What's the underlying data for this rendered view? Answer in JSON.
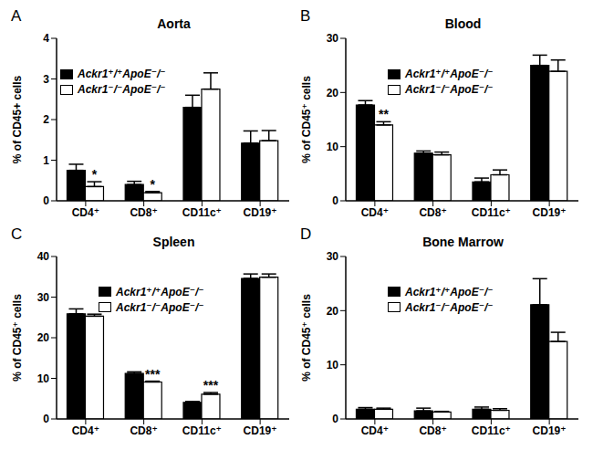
{
  "chart_data": [
    {
      "type": "bar",
      "panel": "A",
      "title": "Aorta",
      "y_label": "% of CD45+ cells",
      "categories": [
        "CD4⁺",
        "CD8⁺",
        "CD11c⁺",
        "CD19⁺"
      ],
      "series": [
        {
          "name": "Ackr1⁺/⁺ApoE⁻/⁻",
          "color": "#000000",
          "values": [
            0.75,
            0.4,
            2.3,
            1.42
          ],
          "errors": [
            0.15,
            0.08,
            0.3,
            0.3
          ]
        },
        {
          "name": "Ackr1⁻/⁻ApoE⁻/⁻",
          "color": "#ffffff",
          "values": [
            0.35,
            0.2,
            2.75,
            1.48
          ],
          "errors": [
            0.12,
            0.03,
            0.4,
            0.25
          ]
        }
      ],
      "ylim": [
        0,
        4
      ],
      "yticks": [
        0,
        1,
        2,
        3,
        4
      ],
      "legend": "upper left",
      "annotations": [
        {
          "category": "CD4⁺",
          "series": "Ackr1⁻/⁻ApoE⁻/⁻",
          "text": "*"
        },
        {
          "category": "CD8⁺",
          "series": "Ackr1⁻/⁻ApoE⁻/⁻",
          "text": "*"
        }
      ]
    },
    {
      "type": "bar",
      "panel": "B",
      "title": "Blood",
      "y_label": "% of CD45⁺ cells",
      "categories": [
        "CD4⁺",
        "CD8⁺",
        "CD11c⁺",
        "CD19⁺"
      ],
      "series": [
        {
          "name": "Ackr1⁺/⁺ApoE⁻/⁻",
          "color": "#000000",
          "values": [
            17.7,
            8.8,
            3.5,
            25.0
          ],
          "errors": [
            0.8,
            0.4,
            0.7,
            1.9
          ]
        },
        {
          "name": "Ackr1⁻/⁻ApoE⁻/⁻",
          "color": "#ffffff",
          "values": [
            14.0,
            8.5,
            4.8,
            23.9
          ],
          "errors": [
            0.6,
            0.5,
            0.9,
            2.1
          ]
        }
      ],
      "ylim": [
        0,
        30
      ],
      "yticks": [
        0,
        10,
        20,
        30
      ],
      "legend": "upper center",
      "annotations": [
        {
          "category": "CD4⁺",
          "series": "Ackr1⁻/⁻ApoE⁻/⁻",
          "text": "**"
        }
      ]
    },
    {
      "type": "bar",
      "panel": "C",
      "title": "Spleen",
      "y_label": "% of CD45⁺ cells",
      "categories": [
        "CD4⁺",
        "CD8⁺",
        "CD11c⁺",
        "CD19⁺"
      ],
      "series": [
        {
          "name": "Ackr1⁺/⁺ApoE⁻/⁻",
          "color": "#000000",
          "values": [
            25.9,
            11.2,
            4.1,
            34.6
          ],
          "errors": [
            1.2,
            0.4,
            0.2,
            1.1
          ]
        },
        {
          "name": "Ackr1⁻/⁻ApoE⁻/⁻",
          "color": "#ffffff",
          "values": [
            25.3,
            9.1,
            6.1,
            34.9
          ],
          "errors": [
            0.5,
            0.2,
            0.4,
            0.8
          ]
        }
      ],
      "ylim": [
        0,
        40
      ],
      "yticks": [
        0,
        10,
        20,
        30,
        40
      ],
      "legend": "upper center",
      "annotations": [
        {
          "category": "CD8⁺",
          "series": "Ackr1⁻/⁻ApoE⁻/⁻",
          "text": "***"
        },
        {
          "category": "CD11c⁺",
          "series": "Ackr1⁻/⁻ApoE⁻/⁻",
          "text": "***"
        }
      ]
    },
    {
      "type": "bar",
      "panel": "D",
      "title": "Bone Marrow",
      "y_label": "% of CD45⁺ cells",
      "categories": [
        "CD4⁺",
        "CD8⁺",
        "CD11c⁺",
        "CD19⁺"
      ],
      "series": [
        {
          "name": "Ackr1⁺/⁺ApoE⁻/⁻",
          "color": "#000000",
          "values": [
            1.8,
            1.5,
            1.8,
            21.1
          ],
          "errors": [
            0.3,
            0.5,
            0.4,
            4.8
          ]
        },
        {
          "name": "Ackr1⁻/⁻ApoE⁻/⁻",
          "color": "#ffffff",
          "values": [
            1.8,
            1.3,
            1.6,
            14.3
          ],
          "errors": [
            0.2,
            0.1,
            0.3,
            1.7
          ]
        }
      ],
      "ylim": [
        0,
        30
      ],
      "yticks": [
        0,
        10,
        20,
        30
      ],
      "legend": "upper center"
    }
  ]
}
